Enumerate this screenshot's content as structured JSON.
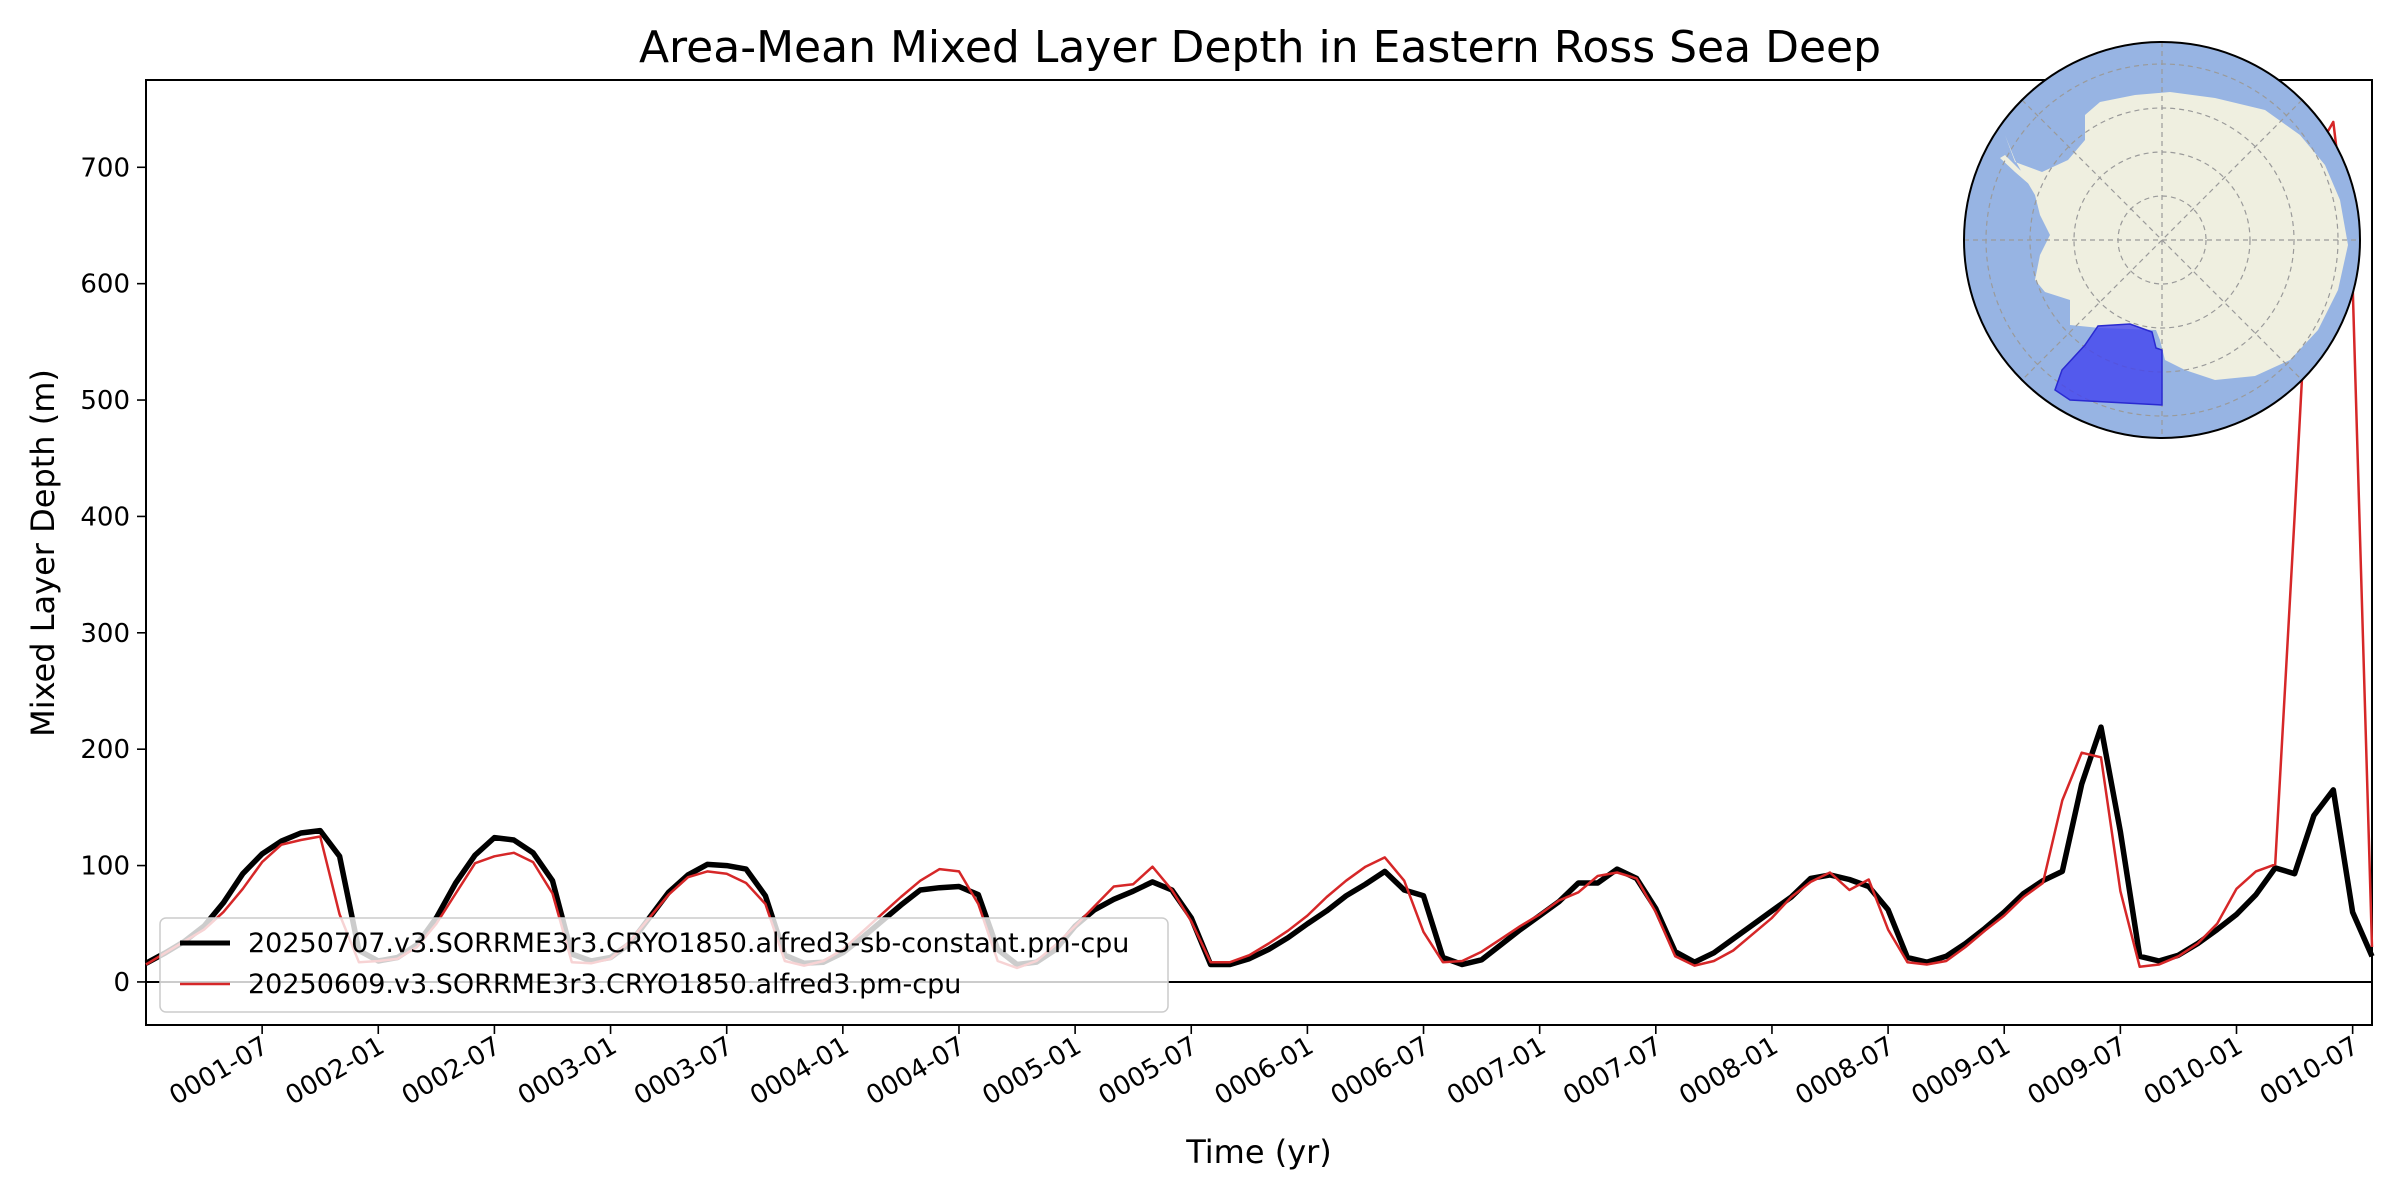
{
  "chart_data": {
    "type": "line",
    "title": "Area-Mean Mixed Layer Depth in Eastern Ross Sea Deep",
    "xlabel": "Time (yr)",
    "ylabel": "Mixed Layer Depth (m)",
    "ylim": [
      -37,
      775
    ],
    "yticks": [
      0,
      100,
      200,
      300,
      400,
      500,
      600,
      700
    ],
    "ytick_labels": [
      "0",
      "100",
      "200",
      "300",
      "400",
      "500",
      "600",
      "700"
    ],
    "xtick_labels": [
      "0001-07",
      "0002-01",
      "0002-07",
      "0003-01",
      "0003-07",
      "0004-01",
      "0004-07",
      "0005-01",
      "0005-07",
      "0006-01",
      "0006-07",
      "0007-01",
      "0007-07",
      "0008-01",
      "0008-07",
      "0009-01",
      "0009-07",
      "0010-01",
      "0010-07"
    ],
    "x_start": "0001-01",
    "x_step": "1 month",
    "grid": false,
    "legend_position": "lower-left",
    "series": [
      {
        "name": "20250707.v3.SORRME3r3.CRYO1850.alfred3-sb-constant.pm-cpu",
        "color": "#000000",
        "values": [
          16,
          25,
          35,
          48,
          68,
          93,
          110,
          121,
          128,
          130,
          108,
          27,
          18,
          21,
          32,
          55,
          85,
          109,
          124,
          122,
          111,
          87,
          24,
          18,
          21,
          33,
          55,
          77,
          92,
          101,
          100,
          97,
          74,
          23,
          16,
          17,
          25,
          38,
          52,
          66,
          79,
          81,
          82,
          75,
          28,
          15,
          17,
          28,
          48,
          62,
          71,
          78,
          86,
          79,
          55,
          15,
          15,
          20,
          28,
          38,
          50,
          61,
          74,
          84,
          95,
          79,
          74,
          21,
          15,
          19,
          32,
          45,
          57,
          69,
          85,
          85,
          97,
          89,
          63,
          26,
          17,
          25,
          37,
          49,
          61,
          73,
          89,
          92,
          88,
          82,
          62,
          21,
          17,
          22,
          33,
          46,
          60,
          76,
          87,
          95,
          170,
          219,
          129,
          22,
          18,
          23,
          33,
          45,
          58,
          75,
          98,
          93,
          143,
          165,
          60,
          22
        ]
      },
      {
        "name": "20250609.v3.SORRME3r3.CRYO1850.alfred3.pm-cpu",
        "color": "#d62728",
        "values": [
          15,
          25,
          35,
          45,
          60,
          80,
          103,
          118,
          122,
          125,
          58,
          17,
          18,
          20,
          30,
          50,
          76,
          102,
          108,
          111,
          103,
          76,
          17,
          16,
          20,
          35,
          55,
          75,
          90,
          95,
          93,
          85,
          67,
          18,
          14,
          18,
          28,
          43,
          58,
          73,
          87,
          97,
          95,
          67,
          18,
          12,
          18,
          32,
          48,
          65,
          82,
          84,
          99,
          79,
          52,
          17,
          17,
          23,
          33,
          44,
          57,
          73,
          87,
          99,
          107,
          87,
          43,
          17,
          18,
          26,
          37,
          48,
          58,
          70,
          77,
          91,
          94,
          89,
          60,
          22,
          14,
          18,
          27,
          41,
          55,
          73,
          86,
          94,
          79,
          88,
          45,
          17,
          15,
          18,
          30,
          44,
          57,
          73,
          85,
          156,
          197,
          193,
          78,
          13,
          15,
          22,
          33,
          50,
          80,
          95,
          101,
          400,
          710,
          739,
          600,
          30
        ]
      }
    ]
  },
  "inset_map": {
    "ocean_color": "#97b4e3",
    "land_color": "#efefe0",
    "region_color": "#4040f0",
    "gridline_color": "#9a9a9a"
  }
}
